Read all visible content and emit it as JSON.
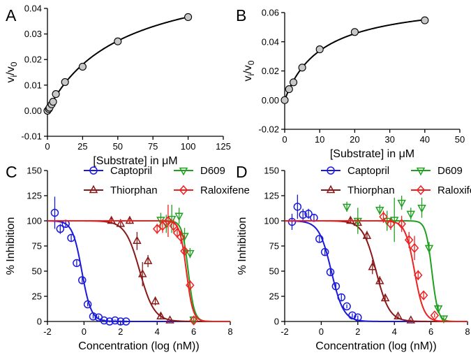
{
  "chart_data": [
    {
      "panel": "A",
      "type": "scatter",
      "xlabel": "[Substrate] in μM",
      "ylabel": "vi/v0",
      "xlim": [
        0,
        125
      ],
      "ylim": [
        -0.01,
        0.04
      ],
      "xticks": [
        0,
        25,
        50,
        75,
        100,
        125
      ],
      "yticks": [
        -0.01,
        0.0,
        0.01,
        0.02,
        0.03,
        0.04
      ],
      "ytick_labels": [
        "-0.01",
        "0.00",
        "0.01",
        "0.02",
        "0.03",
        "0.04"
      ],
      "series": [
        {
          "name": "data",
          "x": [
            0,
            1,
            1.5,
            3,
            4,
            6,
            12.5,
            25,
            50,
            100
          ],
          "y": [
            0.0,
            0.0007,
            0.0012,
            0.0025,
            0.0035,
            0.0065,
            0.0112,
            0.0172,
            0.0271,
            0.0366
          ],
          "curve": {
            "model": "michaelis-menten",
            "vmax": 0.0557,
            "km": 52
          }
        }
      ]
    },
    {
      "panel": "B",
      "type": "scatter",
      "xlabel": "[Substrate] in μM",
      "ylabel": "vi/v0",
      "xlim": [
        0,
        50
      ],
      "ylim": [
        -0.02,
        0.06
      ],
      "xticks": [
        0,
        10,
        20,
        30,
        40,
        50
      ],
      "yticks": [
        -0.02,
        0.0,
        0.02,
        0.04,
        0.06
      ],
      "ytick_labels": [
        "-0.02",
        "0.00",
        "0.02",
        "0.04",
        "0.06"
      ],
      "series": [
        {
          "name": "data",
          "x": [
            0,
            1.25,
            2.5,
            5,
            10,
            20,
            40
          ],
          "y": [
            0.0,
            0.0075,
            0.0122,
            0.0223,
            0.0348,
            0.0467,
            0.0547
          ],
          "curve": {
            "model": "michaelis-menten",
            "vmax": 0.0697,
            "km": 10.6
          }
        }
      ]
    },
    {
      "panel": "C",
      "type": "scatter",
      "xlabel": "Concentration (log (nM))",
      "ylabel": "% Inhibition",
      "xlim": [
        -2,
        8
      ],
      "ylim": [
        0,
        150
      ],
      "xticks": [
        -2,
        0,
        2,
        4,
        6,
        8
      ],
      "yticks": [
        0,
        25,
        50,
        75,
        100,
        125,
        150
      ],
      "ytick_labels": [
        "0",
        "25",
        "50",
        "75",
        "100",
        "125",
        "150"
      ],
      "legend": [
        "Captopril",
        "Thiorphan",
        "D609",
        "Raloxifene"
      ],
      "series": [
        {
          "name": "Captopril",
          "color": "#1a1adc",
          "marker": "circle",
          "x": [
            -1.6,
            -1.3,
            -1.0,
            -0.7,
            -0.4,
            -0.1,
            0.2,
            0.5,
            0.8,
            1.1,
            1.4,
            1.7,
            2.0,
            2.3
          ],
          "y": [
            108,
            92,
            97,
            83,
            58,
            41,
            17,
            5,
            4,
            1,
            0,
            1,
            0,
            0
          ],
          "err": [
            16,
            5,
            4,
            4,
            3,
            3,
            2,
            2,
            2,
            1,
            1,
            1,
            1,
            1
          ],
          "curve": {
            "logic50": -0.12,
            "hill": 1.7,
            "top": 100,
            "bottom": 0
          }
        },
        {
          "name": "Thiorphan",
          "color": "#8b1818",
          "marker": "triangle-up",
          "x": [
            1.5,
            2.0,
            2.5,
            2.9,
            3.2,
            3.5,
            3.9,
            4.2,
            4.7
          ],
          "y": [
            100,
            97,
            100,
            80,
            47,
            60,
            20,
            5,
            1
          ],
          "err": [
            3,
            4,
            3,
            9,
            12,
            6,
            4,
            3,
            1
          ],
          "curve": {
            "logic50": 3.05,
            "hill": 1.1,
            "top": 100,
            "bottom": 0
          }
        },
        {
          "name": "D609",
          "color": "#20a020",
          "marker": "triangle-down",
          "x": [
            4.2,
            4.5,
            4.8,
            5.2,
            5.5,
            5.8,
            6.0
          ],
          "y": [
            101,
            97,
            102,
            105,
            85,
            68,
            2
          ],
          "err": [
            7,
            9,
            14,
            8,
            8,
            5,
            2
          ],
          "curve": {
            "logic50": 5.7,
            "hill": 2.6,
            "top": 100,
            "bottom": 0
          }
        },
        {
          "name": "Raloxifene",
          "color": "#ee2020",
          "marker": "diamond",
          "x": [
            4.0,
            4.3,
            4.6,
            4.9,
            5.1,
            5.3,
            5.5,
            5.8,
            6.0
          ],
          "y": [
            92,
            95,
            100,
            95,
            88,
            84,
            70,
            36,
            1
          ],
          "err": [
            5,
            7,
            16,
            6,
            5,
            7,
            6,
            5,
            2
          ],
          "curve": {
            "logic50": 5.6,
            "hill": 2.4,
            "top": 100,
            "bottom": 0
          }
        }
      ]
    },
    {
      "panel": "D",
      "type": "scatter",
      "xlabel": "Concentration (log (nM))",
      "ylabel": "% Inhibition",
      "xlim": [
        -2,
        8
      ],
      "ylim": [
        0,
        150
      ],
      "xticks": [
        -2,
        0,
        2,
        4,
        6,
        8
      ],
      "yticks": [
        0,
        25,
        50,
        75,
        100,
        125,
        150
      ],
      "ytick_labels": [
        "0",
        "25",
        "50",
        "75",
        "100",
        "125",
        "150"
      ],
      "legend": [
        "Captopril",
        "Thiorphan",
        "D609",
        "Raloxifene"
      ],
      "series": [
        {
          "name": "Captopril",
          "color": "#1a1adc",
          "marker": "circle",
          "x": [
            -1.6,
            -1.3,
            -1.0,
            -0.7,
            -0.4,
            -0.1,
            0.2,
            0.5,
            0.8,
            1.1,
            1.4,
            1.7,
            2.0
          ],
          "y": [
            99,
            114,
            106,
            107,
            103,
            82,
            69,
            49,
            35,
            24,
            15,
            6,
            4
          ],
          "err": [
            8,
            12,
            6,
            5,
            4,
            3,
            3,
            3,
            3,
            3,
            2,
            2,
            2
          ],
          "curve": {
            "logic50": 0.55,
            "hill": 1.3,
            "top": 100,
            "bottom": 0
          }
        },
        {
          "name": "Thiorphan",
          "color": "#8b1818",
          "marker": "triangle-up",
          "x": [
            1.6,
            2.0,
            2.5,
            2.8,
            3.2,
            3.5,
            4.2,
            4.9
          ],
          "y": [
            100,
            98,
            85,
            54,
            40,
            23,
            5,
            1
          ],
          "err": [
            3,
            3,
            5,
            7,
            5,
            4,
            2,
            1
          ],
          "curve": {
            "logic50": 3.0,
            "hill": 1.2,
            "top": 100,
            "bottom": 0
          }
        },
        {
          "name": "D609",
          "color": "#20a020",
          "marker": "triangle-down",
          "x": [
            1.4,
            2.0,
            3.2,
            3.6,
            4.0,
            4.4,
            4.9,
            5.5,
            5.9,
            6.4,
            6.7
          ],
          "y": [
            114,
            100,
            111,
            100,
            101,
            118,
            107,
            113,
            73,
            13,
            3
          ],
          "err": [
            5,
            13,
            5,
            10,
            22,
            7,
            6,
            10,
            6,
            4,
            3
          ],
          "curve": {
            "logic50": 6.05,
            "hill": 2.6,
            "top": 100,
            "bottom": 0
          }
        },
        {
          "name": "Raloxifene",
          "color": "#ee2020",
          "marker": "diamond",
          "x": [
            3.4,
            3.8,
            4.4,
            4.8,
            5.1,
            5.3,
            5.6,
            6.2
          ],
          "y": [
            104,
            97,
            97,
            81,
            73,
            46,
            26,
            6
          ],
          "err": [
            6,
            6,
            8,
            8,
            12,
            5,
            4,
            2
          ],
          "curve": {
            "logic50": 5.1,
            "hill": 1.7,
            "top": 100,
            "bottom": 0
          }
        }
      ]
    }
  ]
}
